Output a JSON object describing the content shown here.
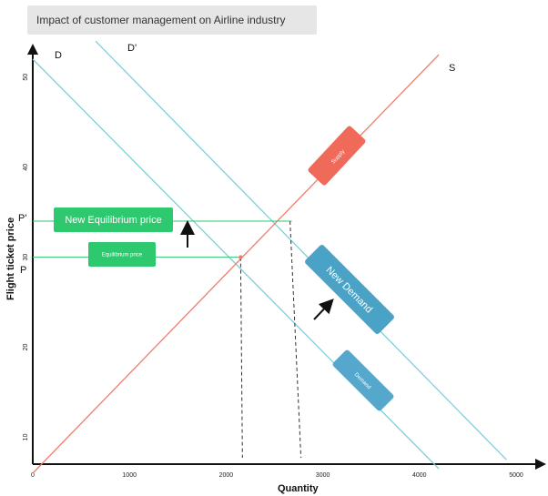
{
  "title": "Impact of customer management on Airline industry",
  "chart_data": {
    "type": "line",
    "xlabel": "Quantity",
    "ylabel": "Flight ticket price",
    "xlim": [
      0,
      5000
    ],
    "ylim": [
      6,
      52
    ],
    "x_ticks": [
      "0",
      "1000",
      "2000",
      "3000",
      "4000",
      "5000"
    ],
    "y_ticks": [
      "10",
      "20",
      "30",
      "40",
      "50"
    ],
    "series": [
      {
        "name": "D",
        "points": [
          [
            0,
            52
          ],
          [
            4200,
            6.5
          ]
        ]
      },
      {
        "name": "D'",
        "points": [
          [
            650,
            54
          ],
          [
            4900,
            7.5
          ]
        ]
      },
      {
        "name": "S",
        "points": [
          [
            0,
            6
          ],
          [
            4200,
            52.5
          ]
        ]
      }
    ],
    "equilibrium": {
      "label": "P",
      "x": 2150,
      "y": 30
    },
    "new_equilibrium": {
      "label": "P'",
      "x": 2680,
      "y": 34
    },
    "annotations": {
      "supply": "Supply",
      "demand": "Demand",
      "new_demand": "New Demand",
      "equilibrium_price": "Equilibrium price",
      "new_equilibrium_price": "New Equilibrium price"
    },
    "colors": {
      "supply": "#f07d6b",
      "demand": "#7ecfd8",
      "new_demand_tag": "#4aa3c7",
      "demand_tag": "#55a8cc",
      "supply_tag": "#ef6a59",
      "eq_tag": "#2ec96e"
    }
  }
}
